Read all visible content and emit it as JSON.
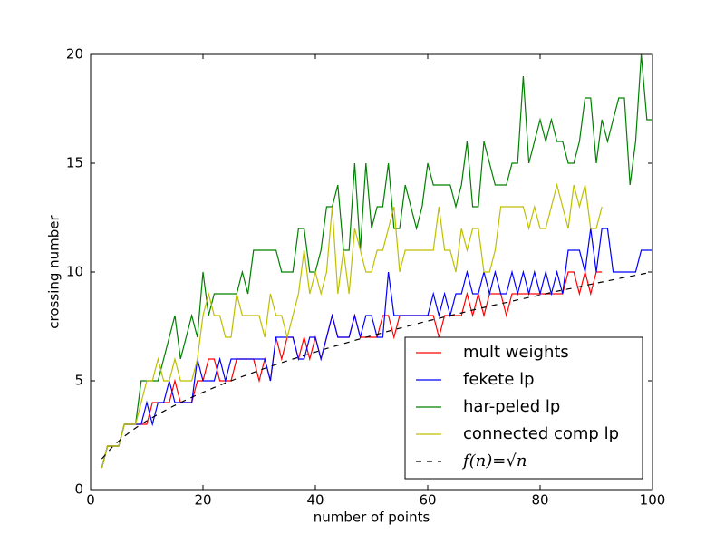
{
  "chart_data": {
    "type": "line",
    "x_label": "number of points",
    "y_label": "crossing number",
    "xlim": [
      0,
      100
    ],
    "ylim": [
      0,
      20
    ],
    "xticks": [
      0,
      20,
      40,
      60,
      80,
      100
    ],
    "yticks": [
      0,
      5,
      10,
      15,
      20
    ],
    "legend_position": "lower right",
    "series": [
      {
        "name": "mult weights",
        "color": "#ff0000",
        "dashed": false,
        "x": [
          2,
          3,
          4,
          5,
          6,
          7,
          8,
          9,
          10,
          11,
          12,
          13,
          14,
          15,
          16,
          17,
          18,
          19,
          20,
          21,
          22,
          23,
          24,
          25,
          26,
          27,
          28,
          29,
          30,
          31,
          32,
          33,
          34,
          35,
          36,
          37,
          38,
          39,
          40,
          41,
          42,
          43,
          44,
          45,
          46,
          47,
          48,
          49,
          50,
          51,
          52,
          53,
          54,
          55,
          56,
          57,
          58,
          59,
          60,
          61,
          62,
          63,
          64,
          65,
          66,
          67,
          68,
          69,
          70,
          71,
          72,
          73,
          74,
          75,
          76,
          77,
          78,
          79,
          80,
          81,
          82,
          83,
          84,
          85,
          86,
          87,
          88,
          89,
          90,
          91
        ],
        "values": [
          1,
          2,
          2,
          2,
          3,
          3,
          3,
          3,
          3,
          4,
          4,
          4,
          4,
          5,
          4,
          4,
          4,
          5,
          5,
          6,
          6,
          5,
          5,
          5,
          6,
          6,
          6,
          6,
          5,
          6,
          5,
          7,
          6,
          7,
          7,
          6,
          7,
          6,
          7,
          6,
          7,
          8,
          7,
          7,
          7,
          8,
          7,
          7,
          7,
          7,
          8,
          8,
          7,
          8,
          8,
          8,
          8,
          8,
          8,
          8,
          7,
          8,
          8,
          8,
          8,
          9,
          8,
          9,
          8,
          9,
          9,
          9,
          8,
          9,
          9,
          9,
          9,
          9,
          9,
          9,
          9,
          9,
          9,
          10,
          10,
          9,
          10,
          9,
          10,
          10
        ]
      },
      {
        "name": "fekete lp",
        "color": "#0000ff",
        "dashed": false,
        "x": [
          2,
          3,
          4,
          5,
          6,
          7,
          8,
          9,
          10,
          11,
          12,
          13,
          14,
          15,
          16,
          17,
          18,
          19,
          20,
          21,
          22,
          23,
          24,
          25,
          26,
          27,
          28,
          29,
          30,
          31,
          32,
          33,
          34,
          35,
          36,
          37,
          38,
          39,
          40,
          41,
          42,
          43,
          44,
          45,
          46,
          47,
          48,
          49,
          50,
          51,
          52,
          53,
          54,
          55,
          56,
          57,
          58,
          59,
          60,
          61,
          62,
          63,
          64,
          65,
          66,
          67,
          68,
          69,
          70,
          71,
          72,
          73,
          74,
          75,
          76,
          77,
          78,
          79,
          80,
          81,
          82,
          83,
          84,
          85,
          86,
          87,
          88,
          89,
          90,
          91,
          92,
          93,
          94,
          95,
          96,
          97,
          98,
          99,
          100
        ],
        "values": [
          1,
          2,
          2,
          2,
          3,
          3,
          3,
          3,
          4,
          3,
          4,
          4,
          5,
          4,
          4,
          4,
          4,
          6,
          5,
          5,
          5,
          6,
          5,
          6,
          6,
          6,
          6,
          6,
          6,
          6,
          5,
          7,
          7,
          7,
          7,
          6,
          6,
          7,
          7,
          6,
          7,
          8,
          7,
          7,
          7,
          8,
          7,
          8,
          8,
          7,
          7,
          10,
          8,
          8,
          8,
          8,
          8,
          8,
          8,
          9,
          8,
          9,
          8,
          9,
          9,
          10,
          9,
          9,
          10,
          9,
          10,
          9,
          9,
          10,
          9,
          10,
          9,
          10,
          9,
          10,
          9,
          10,
          9,
          11,
          11,
          11,
          10,
          12,
          10,
          12,
          12,
          10,
          10,
          10,
          10,
          10,
          11,
          11,
          11
        ]
      },
      {
        "name": "har-peled lp",
        "color": "#008000",
        "dashed": false,
        "x": [
          2,
          3,
          4,
          5,
          6,
          7,
          8,
          9,
          10,
          11,
          12,
          13,
          14,
          15,
          16,
          17,
          18,
          19,
          20,
          21,
          22,
          23,
          24,
          25,
          26,
          27,
          28,
          29,
          30,
          31,
          32,
          33,
          34,
          35,
          36,
          37,
          38,
          39,
          40,
          41,
          42,
          43,
          44,
          45,
          46,
          47,
          48,
          49,
          50,
          51,
          52,
          53,
          54,
          55,
          56,
          57,
          58,
          59,
          60,
          61,
          62,
          63,
          64,
          65,
          66,
          67,
          68,
          69,
          70,
          71,
          72,
          73,
          74,
          75,
          76,
          77,
          78,
          79,
          80,
          81,
          82,
          83,
          84,
          85,
          86,
          87,
          88,
          89,
          90,
          91,
          92,
          93,
          94,
          95,
          96,
          97,
          98,
          99,
          100
        ],
        "values": [
          1,
          2,
          2,
          2,
          3,
          3,
          3,
          5,
          5,
          5,
          5,
          6,
          7,
          8,
          6,
          7,
          8,
          7,
          10,
          8,
          9,
          9,
          9,
          9,
          9,
          10,
          9,
          11,
          11,
          11,
          11,
          11,
          10,
          10,
          10,
          12,
          12,
          10,
          10,
          11,
          13,
          13,
          14,
          11,
          11,
          15,
          11,
          15,
          12,
          13,
          13,
          15,
          12,
          12,
          14,
          13,
          12,
          13,
          15,
          14,
          14,
          14,
          14,
          13,
          14,
          16,
          13,
          13,
          16,
          15,
          14,
          14,
          14,
          15,
          15,
          19,
          15,
          16,
          17,
          16,
          17,
          16,
          16,
          15,
          15,
          16,
          18,
          18,
          15,
          17,
          16,
          17,
          18,
          18,
          14,
          16,
          20,
          17,
          17
        ]
      },
      {
        "name": "connected comp lp",
        "color": "#bfbf00",
        "dashed": false,
        "x": [
          2,
          3,
          4,
          5,
          6,
          7,
          8,
          9,
          10,
          11,
          12,
          13,
          14,
          15,
          16,
          17,
          18,
          19,
          20,
          21,
          22,
          23,
          24,
          25,
          26,
          27,
          28,
          29,
          30,
          31,
          32,
          33,
          34,
          35,
          36,
          37,
          38,
          39,
          40,
          41,
          42,
          43,
          44,
          45,
          46,
          47,
          48,
          49,
          50,
          51,
          52,
          53,
          54,
          55,
          56,
          57,
          58,
          59,
          60,
          61,
          62,
          63,
          64,
          65,
          66,
          67,
          68,
          69,
          70,
          71,
          72,
          73,
          74,
          75,
          76,
          77,
          78,
          79,
          80,
          81,
          82,
          83,
          84,
          85,
          86,
          87,
          88,
          89,
          90,
          91
        ],
        "values": [
          1,
          2,
          2,
          2,
          3,
          3,
          3,
          4,
          5,
          5,
          6,
          5,
          5,
          6,
          5,
          5,
          5,
          6,
          8,
          9,
          8,
          8,
          7,
          7,
          9,
          8,
          8,
          8,
          8,
          7,
          9,
          8,
          8,
          7,
          8,
          9,
          11,
          9,
          10,
          9,
          10,
          13,
          9,
          11,
          9,
          12,
          11,
          10,
          10,
          11,
          11,
          12,
          13,
          10,
          11,
          11,
          11,
          11,
          11,
          11,
          13,
          11,
          11,
          10,
          12,
          11,
          12,
          12,
          10,
          10,
          11,
          13,
          13,
          13,
          13,
          13,
          12,
          13,
          12,
          12,
          13,
          14,
          13,
          12,
          14,
          13,
          14,
          12,
          12,
          13
        ]
      },
      {
        "name": "f(n)=√n",
        "color": "#000000",
        "dashed": true,
        "x": [
          2,
          4,
          6,
          8,
          10,
          12,
          14,
          16,
          18,
          20,
          22,
          24,
          26,
          28,
          30,
          32,
          34,
          36,
          38,
          40,
          42,
          44,
          46,
          48,
          50,
          52,
          54,
          56,
          58,
          60,
          62,
          64,
          66,
          68,
          70,
          72,
          74,
          76,
          78,
          80,
          82,
          84,
          86,
          88,
          90,
          92,
          94,
          96,
          98,
          100
        ],
        "values": [
          1.41,
          2,
          2.45,
          2.83,
          3.16,
          3.46,
          3.74,
          4,
          4.24,
          4.47,
          4.69,
          4.9,
          5.1,
          5.29,
          5.48,
          5.66,
          5.83,
          6,
          6.16,
          6.32,
          6.48,
          6.63,
          6.78,
          6.93,
          7.07,
          7.21,
          7.35,
          7.48,
          7.62,
          7.75,
          7.87,
          8,
          8.12,
          8.25,
          8.37,
          8.49,
          8.6,
          8.72,
          8.83,
          8.94,
          9.06,
          9.17,
          9.27,
          9.38,
          9.49,
          9.59,
          9.7,
          9.8,
          9.9,
          10
        ]
      }
    ]
  }
}
